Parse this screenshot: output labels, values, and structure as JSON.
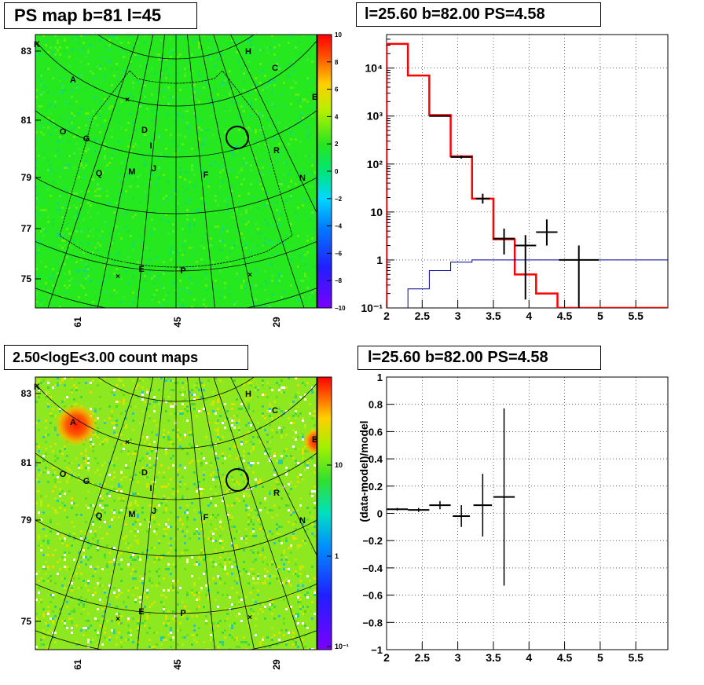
{
  "panels": {
    "ps_map": {
      "title": "PS map b=81 l=45",
      "y_ticks": [
        "83",
        "81",
        "79",
        "77",
        "75"
      ],
      "x_ticks": [
        "61",
        "45",
        "29"
      ],
      "colorbar_ticks": [
        "10",
        "8",
        "6",
        "4",
        "2",
        "0",
        "−2",
        "−4",
        "−6",
        "−8",
        "−10"
      ],
      "labels": [
        "K",
        "H",
        "C",
        "A",
        "B",
        "D",
        "O",
        "G",
        "I",
        "R",
        "Q",
        "M",
        "J",
        "F",
        "N",
        "E",
        "P"
      ]
    },
    "count_map": {
      "title": "2.50<logE<3.00 count maps",
      "y_ticks": [
        "83",
        "81",
        "79",
        "75"
      ],
      "x_ticks": [
        "61",
        "45",
        "29"
      ],
      "colorbar_ticks": [
        "10",
        "1",
        "10⁻¹"
      ],
      "labels": [
        "K",
        "H",
        "C",
        "A",
        "B",
        "D",
        "O",
        "G",
        "I",
        "R",
        "Q",
        "M",
        "J",
        "F",
        "N",
        "E",
        "P"
      ]
    },
    "spectrum": {
      "title": "l=25.60 b=82.00 PS=4.58"
    },
    "residual": {
      "title": "l=25.60 b=82.00 PS=4.58"
    }
  },
  "colors": {
    "map_green": "#26e81e",
    "model_red": "#ff0000",
    "background_blue": "#000099",
    "data_black": "#000000"
  },
  "chart_data": [
    {
      "type": "line",
      "name": "spectrum",
      "title": "l=25.60 b=82.00 PS=4.58",
      "yscale": "log",
      "xlim": [
        2,
        5.95
      ],
      "ylim": [
        0.1,
        50000
      ],
      "x_ticks": [
        "2",
        "2.5",
        "3",
        "3.5",
        "4",
        "4.5",
        "5",
        "5.5"
      ],
      "y_ticks": [
        "10⁻¹",
        "1",
        "10",
        "10²",
        "10³",
        "10⁴"
      ],
      "grid": true,
      "series": [
        {
          "type": "step",
          "color": "red",
          "edges": [
            2,
            2.3,
            2.6,
            2.9,
            3.2,
            3.5,
            3.8,
            4.1,
            4.4,
            5.95
          ],
          "values": [
            32000,
            7000,
            1050,
            145,
            19,
            2.7,
            0.5,
            0.2,
            0.1
          ]
        },
        {
          "type": "step",
          "color": "blue",
          "edges": [
            2.3,
            2.6,
            2.9,
            3.2,
            3.5,
            3.8,
            4.1,
            4.4,
            5.95
          ],
          "values": [
            0.25,
            0.6,
            0.9,
            1.0,
            1.0,
            1.0,
            1.0,
            1.0
          ]
        },
        {
          "type": "points",
          "color": "black",
          "x": [
            2.75,
            3.05,
            3.35,
            3.65,
            3.95,
            4.25,
            4.7
          ],
          "xerr": [
            0.15,
            0.15,
            0.1,
            0.15,
            0.15,
            0.15,
            0.28
          ],
          "y": [
            1000,
            140,
            19,
            2.8,
            2,
            3.8,
            1
          ],
          "ylo": [
            970,
            130,
            15,
            1.3,
            0.15,
            2,
            0.1
          ],
          "yhi": [
            1030,
            150,
            24,
            4.5,
            3.3,
            7,
            2
          ]
        }
      ]
    },
    {
      "type": "scatter",
      "name": "residual",
      "title": "l=25.60 b=82.00 PS=4.58",
      "ylabel": "(data-model)/model",
      "xlim": [
        2,
        5.95
      ],
      "ylim": [
        -1,
        1
      ],
      "x_ticks": [
        "2",
        "2.5",
        "3",
        "3.5",
        "4",
        "4.5",
        "5",
        "5.5"
      ],
      "y_ticks": [
        "−1",
        "−0.8",
        "−0.6",
        "−0.4",
        "−0.2",
        "0",
        "0.2",
        "0.4",
        "0.6",
        "0.8",
        "1"
      ],
      "grid": true,
      "x": [
        2.15,
        2.45,
        2.75,
        3.05,
        3.35,
        3.65
      ],
      "xerr": [
        0.15,
        0.15,
        0.15,
        0.12,
        0.13,
        0.15
      ],
      "y": [
        0.03,
        0.025,
        0.06,
        -0.02,
        0.06,
        0.12
      ],
      "yerr": [
        0.01,
        0.015,
        0.03,
        0.08,
        0.23,
        0.65
      ]
    }
  ]
}
